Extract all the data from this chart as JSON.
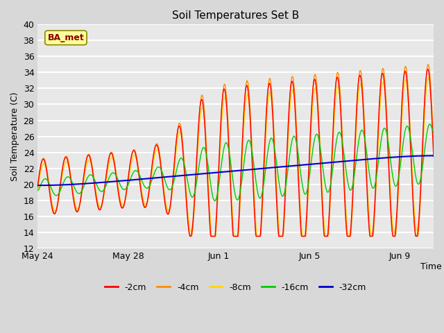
{
  "title": "Soil Temperatures Set B",
  "xlabel": "Time",
  "ylabel": "Soil Temperature (C)",
  "ylim": [
    12,
    40
  ],
  "yticks": [
    12,
    14,
    16,
    18,
    20,
    22,
    24,
    26,
    28,
    30,
    32,
    34,
    36,
    38,
    40
  ],
  "annotation_text": "BA_met",
  "annotation_color": "#8B0000",
  "annotation_bg": "#FFFF99",
  "colors": {
    "-2cm": "#FF0000",
    "-4cm": "#FF8C00",
    "-8cm": "#FFD700",
    "-16cm": "#00CC00",
    "-32cm": "#0000CD"
  },
  "legend_labels": [
    "-2cm",
    "-4cm",
    "-8cm",
    "-16cm",
    "-32cm"
  ],
  "n_days": 17.5,
  "samples_per_day": 48,
  "fig_bg_color": "#D8D8D8",
  "plot_bg_color": "#E8E8E8",
  "grid_color": "#FFFFFF",
  "line_width": 1.0
}
